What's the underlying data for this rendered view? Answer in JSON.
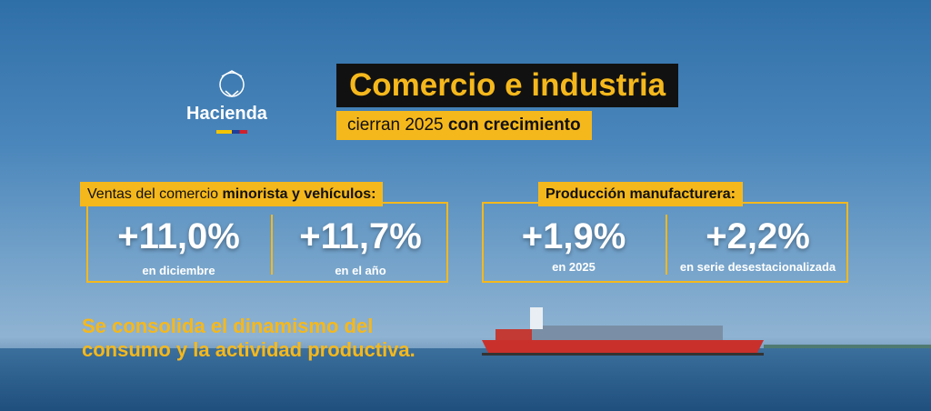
{
  "logo": "Hacienda",
  "header": {
    "title": "Comercio e industria",
    "subtitle_regular": "cierran 2025",
    "subtitle_bold": "con crecimiento"
  },
  "panels": [
    {
      "heading_regular": "Ventas del comercio",
      "heading_bold": "minorista y vehículos:",
      "stats": [
        {
          "value": "+11,0%",
          "label": "en diciembre"
        },
        {
          "value": "+11,7%",
          "label": "en el año"
        }
      ]
    },
    {
      "heading_bold": "Producción manufacturera:",
      "stats": [
        {
          "value": "+1,9%",
          "label": "en 2025"
        },
        {
          "value": "+2,2%",
          "label": "en serie desestacionalizada"
        }
      ]
    }
  ],
  "footer": [
    "Se consolida el dinamismo del",
    "consumo y la actividad productiva."
  ]
}
